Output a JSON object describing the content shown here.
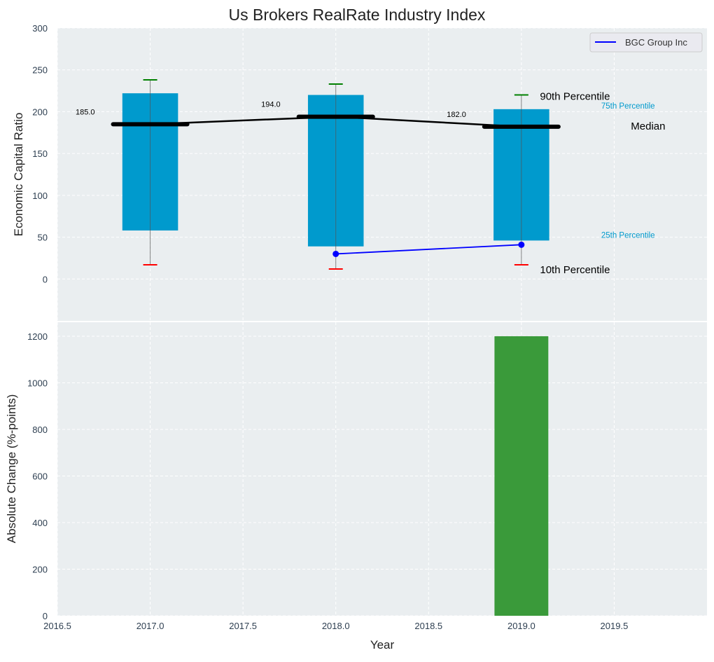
{
  "chart_data": [
    {
      "type": "box",
      "title": "Us Brokers RealRate Industry Index",
      "xlabel": "",
      "ylabel": "Economic Capital Ratio",
      "xlim": [
        2016.5,
        2020.0
      ],
      "ylim": [
        -50,
        300
      ],
      "grid": true,
      "yticks": [
        0,
        50,
        100,
        150,
        200,
        250,
        300
      ],
      "categories": [
        2017,
        2018,
        2019
      ],
      "p10": [
        17,
        12,
        17
      ],
      "p25": [
        58,
        39,
        46
      ],
      "median": [
        185,
        194,
        182
      ],
      "p75": [
        222,
        220,
        203
      ],
      "p90": [
        238,
        233,
        220
      ],
      "median_labels": [
        "185.0",
        "194.0",
        "182.0"
      ],
      "series": [
        {
          "name": "BGC Group Inc",
          "x": [
            2018,
            2019
          ],
          "values": [
            30,
            41
          ],
          "color": "#0000ff"
        }
      ],
      "legend": {
        "position": "top-right",
        "entries": [
          "BGC Group Inc"
        ]
      },
      "annotations": {
        "p90": "90th Percentile",
        "p75": "75th Percentile",
        "median": "Median",
        "p25": "25th Percentile",
        "p10": "10th Percentile"
      },
      "colors": {
        "box": "#009acd",
        "p90": "#008000",
        "p10": "#ff0000",
        "median": "#000000",
        "background": "#eaeef0"
      }
    },
    {
      "type": "bar",
      "xlabel": "Year",
      "ylabel": "Absolute Change (%-points)",
      "xlim": [
        2016.5,
        2020.0
      ],
      "ylim": [
        0,
        1260
      ],
      "grid": true,
      "xticks": [
        "2016.5",
        "2017.0",
        "2017.5",
        "2018.0",
        "2018.5",
        "2019.0",
        "2019.5"
      ],
      "yticks": [
        0,
        200,
        400,
        600,
        800,
        1000,
        1200
      ],
      "categories": [
        2019
      ],
      "values": [
        1200
      ],
      "color": "#3a9a3a"
    }
  ]
}
